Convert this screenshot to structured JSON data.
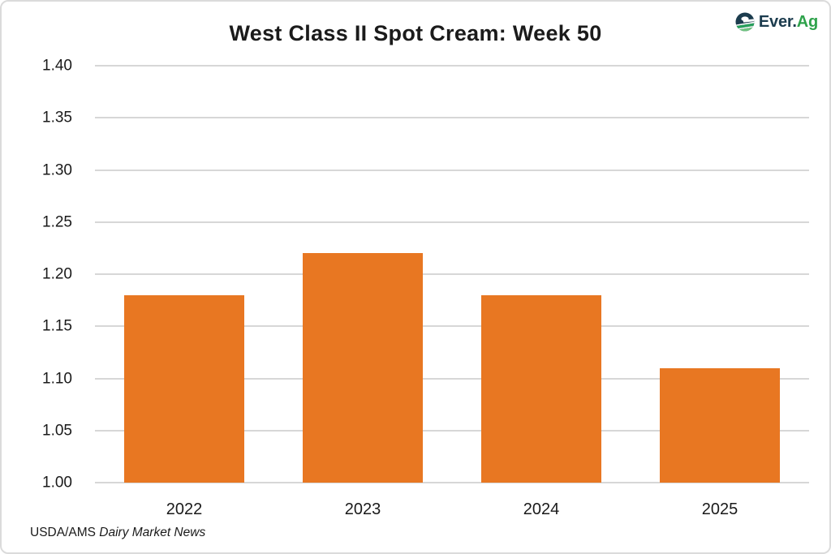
{
  "header": {
    "title": "West Class II Spot Cream: Week 50",
    "logo": {
      "brand_primary": "Ever.",
      "brand_secondary": "Ag",
      "navy": "#1C3C4E",
      "green": "#2EA24B"
    }
  },
  "chart_data": {
    "type": "bar",
    "title": "West Class II Spot Cream: Week 50",
    "categories": [
      "2022",
      "2023",
      "2024",
      "2025"
    ],
    "values": [
      1.18,
      1.22,
      1.18,
      1.11
    ],
    "xlabel": "",
    "ylabel": "",
    "ylim": [
      1.0,
      1.4
    ],
    "ytick_step": 0.05,
    "yticks": [
      "1.40",
      "1.35",
      "1.30",
      "1.25",
      "1.20",
      "1.15",
      "1.10",
      "1.05",
      "1.00"
    ],
    "grid": true,
    "legend": false,
    "bar_color": "#E87722",
    "gridline_color": "#D7D7D7"
  },
  "footer": {
    "source_prefix": "USDA/AMS",
    "source_name": "Dairy Market News"
  }
}
